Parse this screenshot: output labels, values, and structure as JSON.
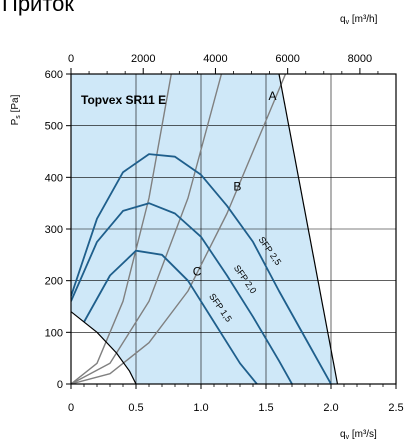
{
  "page": {
    "title": "Приток"
  },
  "chart_data": {
    "type": "line",
    "title": "Topvex SR11 E",
    "xlabel": "q_v [m³/s]",
    "ylabel": "P_s [Pa]",
    "x2label": "q_v [m³/h]",
    "xlim": [
      0,
      2.5
    ],
    "ylim": [
      0,
      600
    ],
    "x2lim": [
      0,
      9000
    ],
    "x_ticks": [
      "0",
      "0.5",
      "1.0",
      "1.5",
      "2.0",
      "2.5"
    ],
    "y_ticks": [
      "0",
      "100",
      "200",
      "300",
      "400",
      "500",
      "600"
    ],
    "x2_ticks": [
      "0",
      "2000",
      "4000",
      "6000",
      "8000"
    ],
    "x_tick_values": [
      0,
      0.5,
      1.0,
      1.5,
      2.0,
      2.5
    ],
    "y_tick_values": [
      0,
      100,
      200,
      300,
      400,
      500,
      600
    ],
    "x2_tick_values": [
      0,
      2000,
      4000,
      6000,
      8000
    ],
    "grid": true,
    "colors": {
      "region": "#cfe8f8",
      "fan_curve": "#1f5f8c",
      "system_curve": "#808080",
      "boundary": "#000000"
    },
    "operating_region": [
      [
        0,
        600
      ],
      [
        1.6,
        600
      ],
      [
        2.05,
        0
      ],
      [
        0.5,
        0
      ],
      [
        0,
        140
      ]
    ],
    "excluded_region": [
      [
        0,
        140
      ],
      [
        0.2,
        100
      ],
      [
        0.35,
        60
      ],
      [
        0.45,
        25
      ],
      [
        0.5,
        0
      ]
    ],
    "fan_curves": [
      {
        "x": [
          0,
          0.2,
          0.4,
          0.6,
          0.8,
          1.0,
          1.2,
          1.4,
          1.6,
          1.8,
          2.0
        ],
        "y": [
          170,
          320,
          410,
          445,
          440,
          405,
          345,
          275,
          180,
          90,
          0
        ]
      },
      {
        "x": [
          0,
          0.2,
          0.4,
          0.6,
          0.8,
          1.0,
          1.2,
          1.4,
          1.6,
          1.7
        ],
        "y": [
          160,
          275,
          335,
          350,
          330,
          285,
          210,
          130,
          45,
          0
        ]
      },
      {
        "x": [
          0.1,
          0.3,
          0.5,
          0.7,
          0.9,
          1.1,
          1.3,
          1.43
        ],
        "y": [
          120,
          210,
          258,
          250,
          200,
          120,
          40,
          0
        ]
      }
    ],
    "system_curves": [
      {
        "label": "A",
        "x": [
          0,
          0.3,
          0.6,
          0.9,
          1.2,
          1.5,
          1.65
        ],
        "y": [
          0,
          20,
          80,
          180,
          330,
          510,
          600
        ]
      },
      {
        "label": "B",
        "x": [
          0,
          0.3,
          0.6,
          0.9,
          1.2,
          1.4
        ],
        "y": [
          0,
          40,
          160,
          360,
          640,
          870
        ]
      },
      {
        "label": "C",
        "x": [
          0,
          0.2,
          0.4,
          0.6,
          0.8
        ],
        "y": [
          0,
          40,
          160,
          360,
          640
        ]
      }
    ],
    "curve_labels": [
      {
        "text": "A",
        "x": 1.55,
        "y": 550
      },
      {
        "text": "B",
        "x": 1.28,
        "y": 375
      },
      {
        "text": "C",
        "x": 0.97,
        "y": 210
      }
    ],
    "sfp_labels": [
      {
        "text": "SFP 2,5",
        "x": 1.44,
        "y": 280,
        "angle": 55
      },
      {
        "text": "SFP 2,0",
        "x": 1.25,
        "y": 225,
        "angle": 55
      },
      {
        "text": "SFP 1,5",
        "x": 1.06,
        "y": 170,
        "angle": 55
      }
    ]
  }
}
